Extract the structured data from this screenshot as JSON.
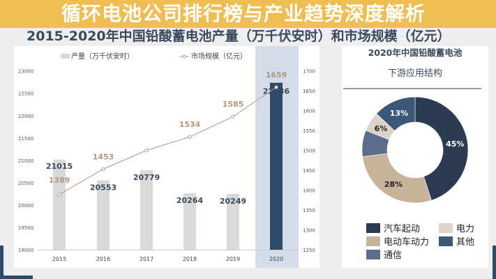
{
  "header": {
    "title": "2015-2020年中国铅酸蓄电池产量（万千伏安时）和市场规模（亿元）"
  },
  "banner": {
    "text": "循环电池公司排行榜与产业趋势深度解析"
  },
  "chart_data": [
    {
      "type": "bar+line",
      "categories": [
        "2015",
        "2016",
        "2017",
        "2018",
        "2019",
        "2020"
      ],
      "series": [
        {
          "name": "产量（万千伏安时）",
          "type": "bar",
          "axis": "left",
          "values": [
            21015,
            20553,
            20779,
            20264,
            20249,
            22736
          ],
          "labels": [
            "21015",
            "20553",
            "20779",
            "20264",
            "20249",
            "22736"
          ],
          "color": "#d9d9d9",
          "highlight_color": "#2f4a68"
        },
        {
          "name": "市场规模（亿元）",
          "type": "line",
          "axis": "right",
          "values": [
            1389,
            1453,
            1500,
            1534,
            1585,
            1659
          ],
          "labels": [
            "1389",
            "1453",
            "",
            "1534",
            "1585",
            "1659"
          ],
          "color": "#b09a7e"
        }
      ],
      "left_ticks": [
        "23000",
        "22500",
        "22000",
        "21500",
        "21000",
        "20500",
        "20000",
        "19500",
        "19000"
      ],
      "right_ticks": [
        "1700",
        "1650",
        "1600",
        "1550",
        "1500",
        "1450",
        "1400",
        "1350",
        "1300",
        "1250"
      ],
      "ylim_left": [
        19000,
        23000
      ],
      "ylim_right": [
        1250,
        1700
      ],
      "highlight_category": "2020",
      "highlight_band_color": "#d3dce8",
      "legend": "top"
    },
    {
      "type": "pie",
      "donut": true,
      "title": [
        "2020年中国铅酸蓄电池",
        "下游应用结构"
      ],
      "slices": [
        {
          "name": "汽车起动",
          "value": 45,
          "label": "45%",
          "color": "#2a3b52"
        },
        {
          "name": "电动车动力",
          "value": 28,
          "label": "28%",
          "color": "#c8b49a"
        },
        {
          "name": "通信",
          "value": 8,
          "label": "",
          "color": "#5a6d8a"
        },
        {
          "name": "电力",
          "value": 6,
          "label": "6%",
          "color": "#ddd3c6"
        },
        {
          "name": "其他",
          "value": 13,
          "label": "13%",
          "color": "#3c5878"
        }
      ],
      "legend_order": [
        "汽车起动",
        "电力",
        "电动车动力",
        "其他",
        "通信"
      ],
      "legend": "bottom"
    }
  ]
}
